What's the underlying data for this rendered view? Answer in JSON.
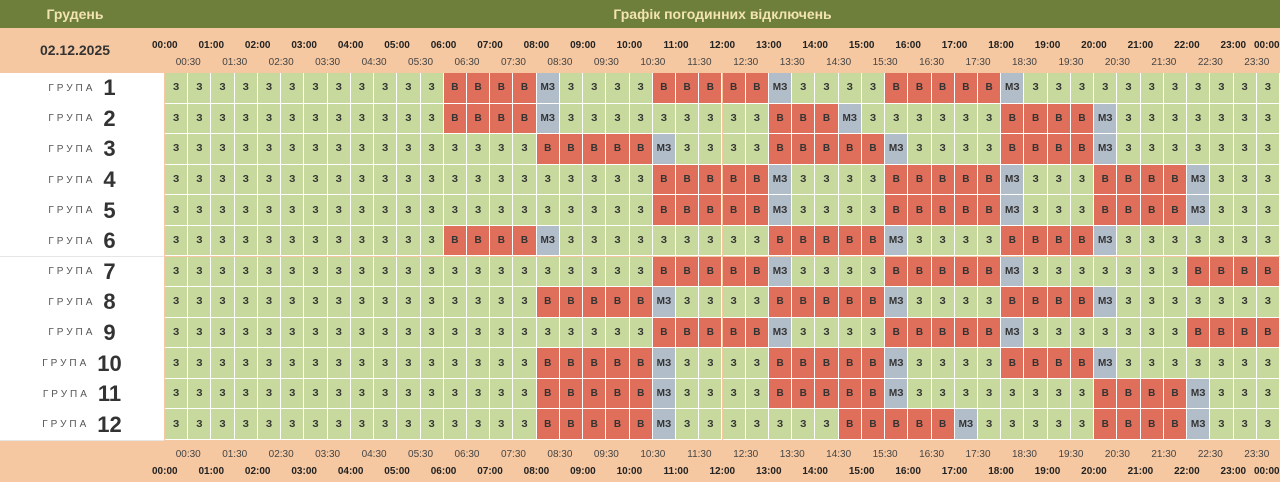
{
  "header": {
    "month": "Грудень",
    "title": "Графік погодинних відключень",
    "date": "02.12.2025"
  },
  "cell_colors": {
    "З": "#c7d99c",
    "В": "#df6f5a",
    "МЗ": "#b2bdca"
  },
  "hours": [
    "00:00",
    "01:00",
    "02:00",
    "03:00",
    "04:00",
    "05:00",
    "06:00",
    "07:00",
    "08:00",
    "09:00",
    "10:00",
    "11:00",
    "12:00",
    "13:00",
    "14:00",
    "15:00",
    "16:00",
    "17:00",
    "18:00",
    "19:00",
    "20:00",
    "21:00",
    "22:00",
    "23:00",
    "00:00"
  ],
  "half_hours": [
    "00:30",
    "01:30",
    "02:30",
    "03:30",
    "04:30",
    "05:30",
    "06:30",
    "07:30",
    "08:30",
    "09:30",
    "10:30",
    "11:30",
    "12:30",
    "13:30",
    "14:30",
    "15:30",
    "16:30",
    "17:30",
    "18:30",
    "19:30",
    "20:30",
    "21:30",
    "22:30",
    "23:30"
  ],
  "groups": [
    {
      "label": "ГРУПА",
      "number": "1",
      "cells": [
        "З",
        "З",
        "З",
        "З",
        "З",
        "З",
        "З",
        "З",
        "З",
        "З",
        "З",
        "З",
        "В",
        "В",
        "В",
        "В",
        "МЗ",
        "З",
        "З",
        "З",
        "З",
        "В",
        "В",
        "В",
        "В",
        "В",
        "МЗ",
        "З",
        "З",
        "З",
        "З",
        "В",
        "В",
        "В",
        "В",
        "В",
        "МЗ",
        "З",
        "З",
        "З",
        "З",
        "З",
        "З",
        "З",
        "З",
        "З",
        "З",
        "З"
      ]
    },
    {
      "label": "ГРУПА",
      "number": "2",
      "cells": [
        "З",
        "З",
        "З",
        "З",
        "З",
        "З",
        "З",
        "З",
        "З",
        "З",
        "З",
        "З",
        "В",
        "В",
        "В",
        "В",
        "МЗ",
        "З",
        "З",
        "З",
        "З",
        "З",
        "З",
        "З",
        "З",
        "З",
        "В",
        "В",
        "В",
        "МЗ",
        "З",
        "З",
        "З",
        "З",
        "З",
        "З",
        "В",
        "В",
        "В",
        "В",
        "МЗ",
        "З",
        "З",
        "З",
        "З",
        "З",
        "З",
        "З"
      ]
    },
    {
      "label": "ГРУПА",
      "number": "3",
      "cells": [
        "З",
        "З",
        "З",
        "З",
        "З",
        "З",
        "З",
        "З",
        "З",
        "З",
        "З",
        "З",
        "З",
        "З",
        "З",
        "З",
        "В",
        "В",
        "В",
        "В",
        "В",
        "МЗ",
        "З",
        "З",
        "З",
        "З",
        "В",
        "В",
        "В",
        "В",
        "В",
        "МЗ",
        "З",
        "З",
        "З",
        "З",
        "В",
        "В",
        "В",
        "В",
        "МЗ",
        "З",
        "З",
        "З",
        "З",
        "З",
        "З",
        "З"
      ]
    },
    {
      "label": "ГРУПА",
      "number": "4",
      "cells": [
        "З",
        "З",
        "З",
        "З",
        "З",
        "З",
        "З",
        "З",
        "З",
        "З",
        "З",
        "З",
        "З",
        "З",
        "З",
        "З",
        "З",
        "З",
        "З",
        "З",
        "З",
        "В",
        "В",
        "В",
        "В",
        "В",
        "МЗ",
        "З",
        "З",
        "З",
        "З",
        "В",
        "В",
        "В",
        "В",
        "В",
        "МЗ",
        "З",
        "З",
        "З",
        "В",
        "В",
        "В",
        "В",
        "МЗ",
        "З",
        "З",
        "З"
      ]
    },
    {
      "label": "ГРУПА",
      "number": "5",
      "cells": [
        "З",
        "З",
        "З",
        "З",
        "З",
        "З",
        "З",
        "З",
        "З",
        "З",
        "З",
        "З",
        "З",
        "З",
        "З",
        "З",
        "З",
        "З",
        "З",
        "З",
        "З",
        "В",
        "В",
        "В",
        "В",
        "В",
        "МЗ",
        "З",
        "З",
        "З",
        "З",
        "В",
        "В",
        "В",
        "В",
        "В",
        "МЗ",
        "З",
        "З",
        "З",
        "В",
        "В",
        "В",
        "В",
        "МЗ",
        "З",
        "З",
        "З"
      ]
    },
    {
      "label": "ГРУПА",
      "number": "6",
      "cells": [
        "З",
        "З",
        "З",
        "З",
        "З",
        "З",
        "З",
        "З",
        "З",
        "З",
        "З",
        "З",
        "В",
        "В",
        "В",
        "В",
        "МЗ",
        "З",
        "З",
        "З",
        "З",
        "З",
        "З",
        "З",
        "З",
        "З",
        "В",
        "В",
        "В",
        "В",
        "В",
        "МЗ",
        "З",
        "З",
        "З",
        "З",
        "В",
        "В",
        "В",
        "В",
        "МЗ",
        "З",
        "З",
        "З",
        "З",
        "З",
        "З",
        "З"
      ]
    },
    {
      "label": "ГРУПА",
      "number": "7",
      "cells": [
        "З",
        "З",
        "З",
        "З",
        "З",
        "З",
        "З",
        "З",
        "З",
        "З",
        "З",
        "З",
        "З",
        "З",
        "З",
        "З",
        "З",
        "З",
        "З",
        "З",
        "З",
        "В",
        "В",
        "В",
        "В",
        "В",
        "МЗ",
        "З",
        "З",
        "З",
        "З",
        "В",
        "В",
        "В",
        "В",
        "В",
        "МЗ",
        "З",
        "З",
        "З",
        "З",
        "З",
        "З",
        "З",
        "В",
        "В",
        "В",
        "В"
      ]
    },
    {
      "label": "ГРУПА",
      "number": "8",
      "cells": [
        "З",
        "З",
        "З",
        "З",
        "З",
        "З",
        "З",
        "З",
        "З",
        "З",
        "З",
        "З",
        "З",
        "З",
        "З",
        "З",
        "В",
        "В",
        "В",
        "В",
        "В",
        "МЗ",
        "З",
        "З",
        "З",
        "З",
        "В",
        "В",
        "В",
        "В",
        "В",
        "МЗ",
        "З",
        "З",
        "З",
        "З",
        "В",
        "В",
        "В",
        "В",
        "МЗ",
        "З",
        "З",
        "З",
        "З",
        "З",
        "З",
        "З"
      ]
    },
    {
      "label": "ГРУПА",
      "number": "9",
      "cells": [
        "З",
        "З",
        "З",
        "З",
        "З",
        "З",
        "З",
        "З",
        "З",
        "З",
        "З",
        "З",
        "З",
        "З",
        "З",
        "З",
        "З",
        "З",
        "З",
        "З",
        "З",
        "В",
        "В",
        "В",
        "В",
        "В",
        "МЗ",
        "З",
        "З",
        "З",
        "З",
        "В",
        "В",
        "В",
        "В",
        "В",
        "МЗ",
        "З",
        "З",
        "З",
        "З",
        "З",
        "З",
        "З",
        "В",
        "В",
        "В",
        "В"
      ]
    },
    {
      "label": "ГРУПА",
      "number": "10",
      "cells": [
        "З",
        "З",
        "З",
        "З",
        "З",
        "З",
        "З",
        "З",
        "З",
        "З",
        "З",
        "З",
        "З",
        "З",
        "З",
        "З",
        "В",
        "В",
        "В",
        "В",
        "В",
        "МЗ",
        "З",
        "З",
        "З",
        "З",
        "В",
        "В",
        "В",
        "В",
        "В",
        "МЗ",
        "З",
        "З",
        "З",
        "З",
        "В",
        "В",
        "В",
        "В",
        "МЗ",
        "З",
        "З",
        "З",
        "З",
        "З",
        "З",
        "З"
      ]
    },
    {
      "label": "ГРУПА",
      "number": "11",
      "cells": [
        "З",
        "З",
        "З",
        "З",
        "З",
        "З",
        "З",
        "З",
        "З",
        "З",
        "З",
        "З",
        "З",
        "З",
        "З",
        "З",
        "В",
        "В",
        "В",
        "В",
        "В",
        "МЗ",
        "З",
        "З",
        "З",
        "З",
        "В",
        "В",
        "В",
        "В",
        "В",
        "МЗ",
        "З",
        "З",
        "З",
        "З",
        "З",
        "З",
        "З",
        "З",
        "В",
        "В",
        "В",
        "В",
        "МЗ",
        "З",
        "З",
        "З"
      ]
    },
    {
      "label": "ГРУПА",
      "number": "12",
      "cells": [
        "З",
        "З",
        "З",
        "З",
        "З",
        "З",
        "З",
        "З",
        "З",
        "З",
        "З",
        "З",
        "З",
        "З",
        "З",
        "З",
        "В",
        "В",
        "В",
        "В",
        "В",
        "МЗ",
        "З",
        "З",
        "З",
        "З",
        "З",
        "З",
        "З",
        "В",
        "В",
        "В",
        "В",
        "В",
        "МЗ",
        "З",
        "З",
        "З",
        "З",
        "З",
        "В",
        "В",
        "В",
        "В",
        "МЗ",
        "З",
        "З",
        "З"
      ]
    }
  ]
}
